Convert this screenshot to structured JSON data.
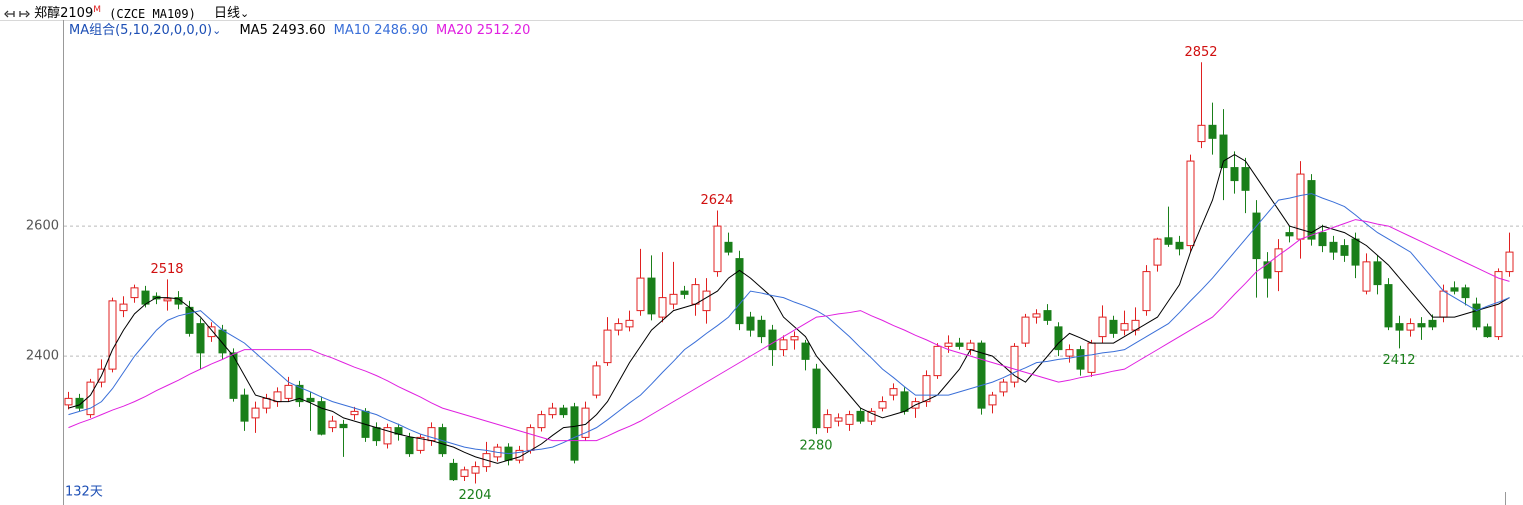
{
  "chart_data": {
    "type": "candlestick",
    "title": "郑醇2109",
    "title_mark": "M",
    "subtitle": "(CZCE MA109)",
    "period": "日线",
    "ma_group": "MA组合(5,10,20,0,0,0)",
    "days": "132天",
    "ylim": [
      2171,
      2917
    ],
    "yticks": [
      2400,
      2600
    ],
    "grid": true,
    "up_color": "#e02020",
    "down_color": "#1a7f1a",
    "candles": [
      [
        2325,
        2345,
        2318,
        2335
      ],
      [
        2335,
        2342,
        2315,
        2320
      ],
      [
        2310,
        2365,
        2305,
        2360
      ],
      [
        2360,
        2395,
        2352,
        2380
      ],
      [
        2380,
        2490,
        2375,
        2485
      ],
      [
        2470,
        2492,
        2460,
        2480
      ],
      [
        2490,
        2510,
        2482,
        2505
      ],
      [
        2500,
        2508,
        2475,
        2480
      ],
      [
        2492,
        2498,
        2480,
        2488
      ],
      [
        2485,
        2518,
        2470,
        2488
      ],
      [
        2490,
        2500,
        2472,
        2480
      ],
      [
        2475,
        2485,
        2430,
        2435
      ],
      [
        2450,
        2458,
        2380,
        2405
      ],
      [
        2430,
        2452,
        2422,
        2445
      ],
      [
        2440,
        2448,
        2395,
        2405
      ],
      [
        2405,
        2412,
        2330,
        2335
      ],
      [
        2340,
        2350,
        2285,
        2300
      ],
      [
        2305,
        2330,
        2282,
        2320
      ],
      [
        2320,
        2342,
        2312,
        2335
      ],
      [
        2330,
        2352,
        2322,
        2345
      ],
      [
        2335,
        2368,
        2330,
        2355
      ],
      [
        2355,
        2362,
        2322,
        2330
      ],
      [
        2335,
        2345,
        2285,
        2330
      ],
      [
        2330,
        2338,
        2278,
        2280
      ],
      [
        2290,
        2308,
        2283,
        2300
      ],
      [
        2295,
        2302,
        2245,
        2290
      ],
      [
        2310,
        2322,
        2302,
        2315
      ],
      [
        2315,
        2320,
        2268,
        2275
      ],
      [
        2290,
        2298,
        2262,
        2270
      ],
      [
        2265,
        2296,
        2258,
        2290
      ],
      [
        2290,
        2296,
        2270,
        2280
      ],
      [
        2275,
        2282,
        2245,
        2250
      ],
      [
        2255,
        2280,
        2250,
        2275
      ],
      [
        2270,
        2298,
        2262,
        2290
      ],
      [
        2290,
        2296,
        2245,
        2250
      ],
      [
        2235,
        2242,
        2208,
        2210
      ],
      [
        2215,
        2230,
        2208,
        2225
      ],
      [
        2220,
        2238,
        2204,
        2230
      ],
      [
        2230,
        2268,
        2222,
        2250
      ],
      [
        2245,
        2265,
        2238,
        2260
      ],
      [
        2260,
        2266,
        2232,
        2240
      ],
      [
        2240,
        2262,
        2235,
        2255
      ],
      [
        2255,
        2295,
        2250,
        2290
      ],
      [
        2290,
        2316,
        2284,
        2310
      ],
      [
        2310,
        2328,
        2304,
        2320
      ],
      [
        2320,
        2325,
        2305,
        2310
      ],
      [
        2322,
        2328,
        2235,
        2240
      ],
      [
        2275,
        2330,
        2270,
        2320
      ],
      [
        2340,
        2392,
        2335,
        2385
      ],
      [
        2390,
        2460,
        2385,
        2440
      ],
      [
        2440,
        2458,
        2432,
        2450
      ],
      [
        2445,
        2470,
        2438,
        2455
      ],
      [
        2470,
        2565,
        2462,
        2520
      ],
      [
        2520,
        2555,
        2455,
        2465
      ],
      [
        2460,
        2560,
        2452,
        2490
      ],
      [
        2480,
        2545,
        2472,
        2495
      ],
      [
        2500,
        2508,
        2488,
        2495
      ],
      [
        2480,
        2520,
        2462,
        2510
      ],
      [
        2470,
        2520,
        2450,
        2500
      ],
      [
        2530,
        2624,
        2522,
        2600
      ],
      [
        2575,
        2590,
        2555,
        2560
      ],
      [
        2550,
        2562,
        2440,
        2450
      ],
      [
        2460,
        2468,
        2430,
        2440
      ],
      [
        2455,
        2462,
        2420,
        2430
      ],
      [
        2440,
        2448,
        2385,
        2410
      ],
      [
        2410,
        2432,
        2400,
        2425
      ],
      [
        2425,
        2438,
        2410,
        2430
      ],
      [
        2420,
        2425,
        2378,
        2395
      ],
      [
        2380,
        2388,
        2280,
        2290
      ],
      [
        2290,
        2318,
        2282,
        2310
      ],
      [
        2300,
        2312,
        2292,
        2305
      ],
      [
        2295,
        2316,
        2285,
        2310
      ],
      [
        2315,
        2320,
        2296,
        2300
      ],
      [
        2300,
        2320,
        2294,
        2315
      ],
      [
        2320,
        2338,
        2315,
        2330
      ],
      [
        2340,
        2358,
        2332,
        2350
      ],
      [
        2345,
        2352,
        2310,
        2315
      ],
      [
        2320,
        2336,
        2305,
        2330
      ],
      [
        2330,
        2378,
        2322,
        2370
      ],
      [
        2370,
        2420,
        2365,
        2415
      ],
      [
        2415,
        2432,
        2405,
        2420
      ],
      [
        2420,
        2428,
        2410,
        2415
      ],
      [
        2410,
        2425,
        2402,
        2420
      ],
      [
        2420,
        2424,
        2310,
        2320
      ],
      [
        2325,
        2345,
        2312,
        2340
      ],
      [
        2345,
        2365,
        2338,
        2360
      ],
      [
        2360,
        2420,
        2352,
        2415
      ],
      [
        2420,
        2465,
        2414,
        2460
      ],
      [
        2460,
        2472,
        2450,
        2465
      ],
      [
        2470,
        2480,
        2448,
        2455
      ],
      [
        2445,
        2452,
        2400,
        2410
      ],
      [
        2400,
        2418,
        2390,
        2410
      ],
      [
        2410,
        2416,
        2370,
        2380
      ],
      [
        2375,
        2425,
        2368,
        2420
      ],
      [
        2430,
        2478,
        2420,
        2460
      ],
      [
        2455,
        2462,
        2428,
        2435
      ],
      [
        2440,
        2470,
        2432,
        2450
      ],
      [
        2440,
        2475,
        2432,
        2455
      ],
      [
        2470,
        2540,
        2462,
        2530
      ],
      [
        2540,
        2582,
        2530,
        2580
      ],
      [
        2582,
        2630,
        2568,
        2572
      ],
      [
        2575,
        2585,
        2555,
        2565
      ],
      [
        2570,
        2710,
        2560,
        2700
      ],
      [
        2730,
        2852,
        2720,
        2755
      ],
      [
        2755,
        2790,
        2710,
        2735
      ],
      [
        2740,
        2780,
        2640,
        2690
      ],
      [
        2690,
        2715,
        2650,
        2670
      ],
      [
        2690,
        2705,
        2620,
        2655
      ],
      [
        2620,
        2640,
        2490,
        2550
      ],
      [
        2545,
        2560,
        2490,
        2520
      ],
      [
        2530,
        2580,
        2500,
        2565
      ],
      [
        2590,
        2600,
        2575,
        2585
      ],
      [
        2580,
        2700,
        2550,
        2680
      ],
      [
        2670,
        2680,
        2570,
        2580
      ],
      [
        2590,
        2602,
        2560,
        2570
      ],
      [
        2575,
        2585,
        2548,
        2560
      ],
      [
        2570,
        2580,
        2545,
        2555
      ],
      [
        2580,
        2590,
        2520,
        2540
      ],
      [
        2500,
        2558,
        2495,
        2545
      ],
      [
        2545,
        2555,
        2495,
        2510
      ],
      [
        2510,
        2520,
        2440,
        2445
      ],
      [
        2450,
        2462,
        2412,
        2440
      ],
      [
        2440,
        2458,
        2430,
        2450
      ],
      [
        2450,
        2460,
        2425,
        2445
      ],
      [
        2455,
        2464,
        2440,
        2445
      ],
      [
        2460,
        2510,
        2452,
        2500
      ],
      [
        2505,
        2515,
        2495,
        2500
      ],
      [
        2505,
        2510,
        2478,
        2490
      ],
      [
        2480,
        2490,
        2440,
        2445
      ],
      [
        2445,
        2450,
        2428,
        2430
      ],
      [
        2430,
        2535,
        2425,
        2530
      ],
      [
        2530,
        2590,
        2522,
        2560
      ]
    ],
    "series": [
      {
        "name": "MA5",
        "color": "#000000",
        "current": {
          "value": 2493.6,
          "label": "2493.60"
        },
        "values": [
          2320,
          2325,
          2340,
          2370,
          2410,
          2440,
          2465,
          2480,
          2490,
          2490,
          2488,
          2475,
          2460,
          2440,
          2420,
          2400,
          2370,
          2340,
          2335,
          2330,
          2330,
          2335,
          2328,
          2320,
          2315,
          2305,
          2300,
          2295,
          2290,
          2285,
          2280,
          2276,
          2273,
          2270,
          2265,
          2260,
          2252,
          2245,
          2240,
          2235,
          2240,
          2245,
          2255,
          2265,
          2278,
          2290,
          2292,
          2295,
          2310,
          2330,
          2360,
          2390,
          2415,
          2440,
          2455,
          2470,
          2475,
          2480,
          2490,
          2500,
          2520,
          2532,
          2520,
          2505,
          2490,
          2460,
          2445,
          2430,
          2400,
          2380,
          2360,
          2340,
          2320,
          2312,
          2305,
          2310,
          2315,
          2325,
          2332,
          2340,
          2360,
          2380,
          2410,
          2405,
          2400,
          2385,
          2370,
          2360,
          2380,
          2400,
          2420,
          2435,
          2428,
          2420,
          2420,
          2420,
          2430,
          2440,
          2450,
          2460,
          2485,
          2510,
          2560,
          2600,
          2640,
          2700,
          2710,
          2700,
          2675,
          2650,
          2625,
          2600,
          2595,
          2590,
          2600,
          2595,
          2590,
          2580,
          2570,
          2555,
          2540,
          2520,
          2500,
          2480,
          2460,
          2460,
          2460,
          2465,
          2470,
          2475,
          2480,
          2490
        ]
      },
      {
        "name": "MA10",
        "color": "#3a6fd8",
        "current": {
          "value": 2486.9,
          "label": "2486.90"
        },
        "values": [
          2310,
          2315,
          2320,
          2330,
          2350,
          2375,
          2400,
          2420,
          2440,
          2455,
          2462,
          2466,
          2470,
          2455,
          2440,
          2430,
          2420,
          2405,
          2390,
          2375,
          2360,
          2352,
          2345,
          2337,
          2330,
          2325,
          2320,
          2315,
          2310,
          2302,
          2295,
          2287,
          2280,
          2275,
          2270,
          2265,
          2260,
          2257,
          2255,
          2252,
          2250,
          2252,
          2255,
          2257,
          2260,
          2267,
          2275,
          2282,
          2290,
          2302,
          2315,
          2328,
          2340,
          2357,
          2375,
          2392,
          2410,
          2422,
          2435,
          2447,
          2460,
          2480,
          2500,
          2497,
          2493,
          2490,
          2483,
          2477,
          2470,
          2460,
          2445,
          2430,
          2413,
          2397,
          2380,
          2367,
          2353,
          2340,
          2340,
          2340,
          2340,
          2345,
          2350,
          2355,
          2360,
          2367,
          2375,
          2382,
          2390,
          2392,
          2395,
          2397,
          2400,
          2402,
          2405,
          2407,
          2410,
          2420,
          2430,
          2440,
          2450,
          2467,
          2485,
          2502,
          2520,
          2540,
          2560,
          2580,
          2600,
          2620,
          2640,
          2643,
          2647,
          2650,
          2643,
          2637,
          2630,
          2617,
          2603,
          2590,
          2580,
          2570,
          2560,
          2540,
          2520,
          2500,
          2490,
          2480,
          2470,
          2477,
          2483,
          2490
        ]
      },
      {
        "name": "MA20",
        "color": "#e020e0",
        "current": {
          "value": 2512.2,
          "label": "2512.20"
        },
        "values": [
          2290,
          2297,
          2303,
          2310,
          2317,
          2323,
          2330,
          2338,
          2347,
          2355,
          2363,
          2372,
          2380,
          2388,
          2395,
          2403,
          2410,
          2410,
          2410,
          2410,
          2410,
          2410,
          2410,
          2403,
          2397,
          2390,
          2383,
          2377,
          2370,
          2362,
          2353,
          2345,
          2337,
          2328,
          2320,
          2315,
          2310,
          2305,
          2300,
          2295,
          2290,
          2285,
          2280,
          2275,
          2270,
          2270,
          2270,
          2270,
          2270,
          2277,
          2285,
          2292,
          2300,
          2310,
          2320,
          2330,
          2340,
          2350,
          2360,
          2370,
          2380,
          2390,
          2400,
          2410,
          2420,
          2430,
          2440,
          2450,
          2460,
          2462,
          2465,
          2467,
          2470,
          2462,
          2455,
          2447,
          2440,
          2432,
          2425,
          2417,
          2410,
          2405,
          2400,
          2395,
          2390,
          2385,
          2380,
          2375,
          2370,
          2365,
          2360,
          2363,
          2367,
          2370,
          2373,
          2377,
          2380,
          2390,
          2400,
          2410,
          2420,
          2430,
          2440,
          2450,
          2460,
          2477,
          2495,
          2512,
          2530,
          2542,
          2555,
          2567,
          2580,
          2586,
          2592,
          2598,
          2604,
          2610,
          2607,
          2603,
          2600,
          2592,
          2584,
          2576,
          2568,
          2560,
          2552,
          2544,
          2536,
          2528,
          2520,
          2515
        ]
      }
    ],
    "high_labels": [
      2518,
      2624,
      2852
    ],
    "low_labels": [
      2204,
      2280,
      2412
    ]
  }
}
